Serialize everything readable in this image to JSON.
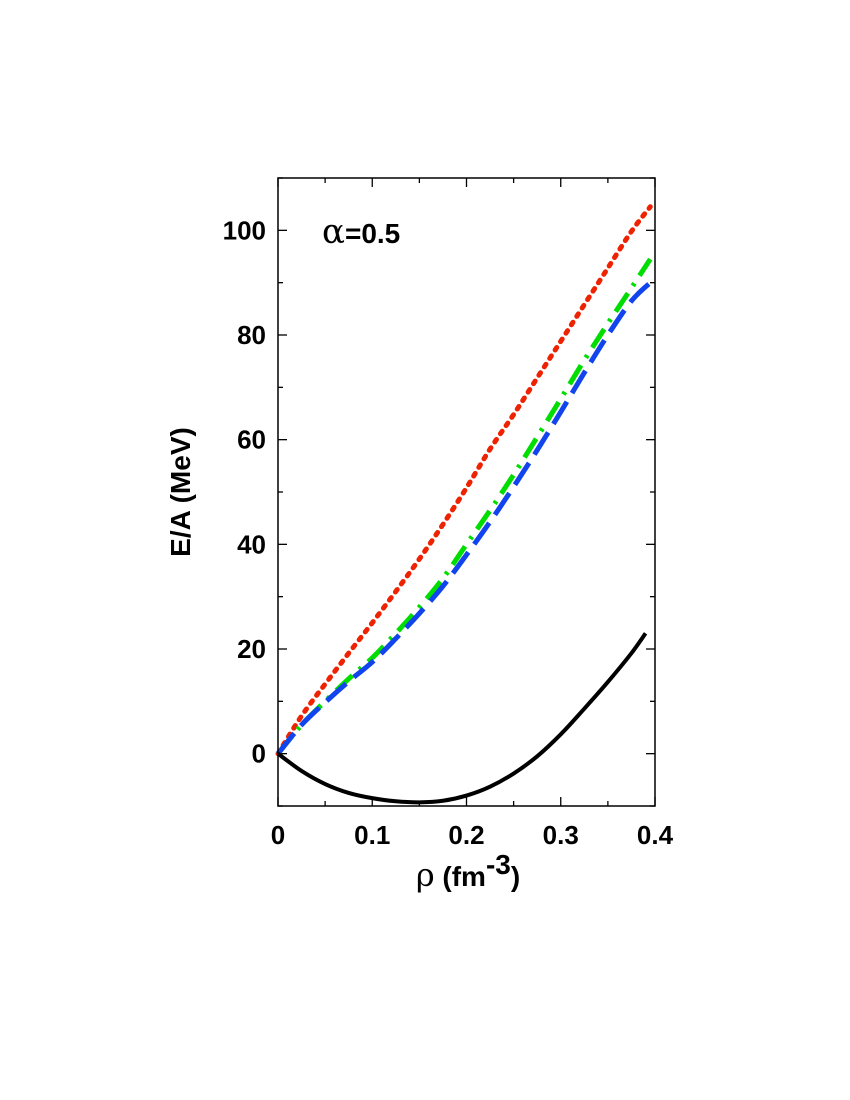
{
  "chart_data": {
    "type": "line",
    "annotation": "α=0.5",
    "annotation_symbol": "α",
    "annotation_value": "=0.5",
    "xlabel": "ρ (fm-3)",
    "xlabel_symbol": "ρ",
    "xlabel_unit_prefix": " (fm",
    "xlabel_unit_sup": "-3",
    "xlabel_unit_suffix": ")",
    "ylabel": "E/A (MeV)",
    "xlim": [
      0,
      0.4
    ],
    "ylim": [
      -10,
      110
    ],
    "x_ticks": [
      "0",
      "0.1",
      "0.2",
      "0.3",
      "0.4"
    ],
    "y_ticks": [
      "0",
      "20",
      "40",
      "60",
      "80",
      "100"
    ],
    "x_tick_values": [
      0,
      0.1,
      0.2,
      0.3,
      0.4
    ],
    "y_tick_values": [
      0,
      20,
      40,
      60,
      80,
      100
    ],
    "x_minor_step": 0.05,
    "y_minor_step": 10,
    "grid": false,
    "series": [
      {
        "color": "#ee2200",
        "style": "dotted",
        "x": [
          0,
          0.025,
          0.05,
          0.075,
          0.1,
          0.125,
          0.15,
          0.175,
          0.2,
          0.225,
          0.25,
          0.275,
          0.3,
          0.325,
          0.35,
          0.375,
          0.395
        ],
        "y": [
          0,
          7.2,
          13.3,
          19.2,
          25,
          31,
          37.2,
          43.8,
          50.8,
          58.2,
          64.8,
          71.8,
          78.8,
          85.8,
          92.8,
          99.8,
          104.5
        ]
      },
      {
        "color": "#00dd00",
        "style": "dashdot",
        "x": [
          0,
          0.025,
          0.05,
          0.075,
          0.1,
          0.125,
          0.15,
          0.175,
          0.2,
          0.225,
          0.25,
          0.275,
          0.3,
          0.325,
          0.35,
          0.375,
          0.395
        ],
        "y": [
          0,
          5.5,
          10,
          14.3,
          18.3,
          23,
          28,
          33.5,
          40,
          46.5,
          53.3,
          60.5,
          67.8,
          75.2,
          82.2,
          89,
          94.5
        ]
      },
      {
        "color": "#1144ee",
        "style": "dashed",
        "x": [
          0,
          0.025,
          0.05,
          0.075,
          0.1,
          0.125,
          0.15,
          0.175,
          0.2,
          0.225,
          0.25,
          0.275,
          0.3,
          0.325,
          0.35,
          0.375,
          0.395
        ],
        "y": [
          0,
          5.5,
          9.8,
          13.8,
          17.5,
          22,
          26.8,
          32,
          38,
          44.3,
          51,
          58,
          65.3,
          72.8,
          80,
          86.5,
          90
        ]
      },
      {
        "color": "#000000",
        "style": "solid",
        "x": [
          0,
          0.025,
          0.05,
          0.075,
          0.1,
          0.125,
          0.15,
          0.175,
          0.2,
          0.225,
          0.25,
          0.275,
          0.3,
          0.325,
          0.35,
          0.375,
          0.39
        ],
        "y": [
          0,
          -3.3,
          -5.8,
          -7.5,
          -8.5,
          -9.1,
          -9.3,
          -9,
          -8,
          -6.3,
          -3.8,
          -0.5,
          3.7,
          8.6,
          13.7,
          19.2,
          23
        ]
      }
    ]
  }
}
